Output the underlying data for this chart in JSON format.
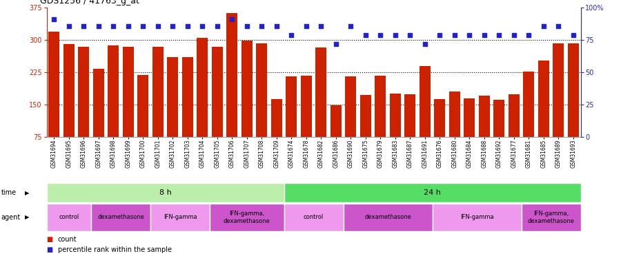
{
  "title": "GDS1256 / 41763_g_at",
  "samples": [
    "GSM31694",
    "GSM31695",
    "GSM31696",
    "GSM31697",
    "GSM31698",
    "GSM31699",
    "GSM31700",
    "GSM31701",
    "GSM31702",
    "GSM31703",
    "GSM31704",
    "GSM31705",
    "GSM31706",
    "GSM31707",
    "GSM31708",
    "GSM31709",
    "GSM31674",
    "GSM31678",
    "GSM31682",
    "GSM31686",
    "GSM31690",
    "GSM31675",
    "GSM31679",
    "GSM31683",
    "GSM31687",
    "GSM31691",
    "GSM31676",
    "GSM31680",
    "GSM31684",
    "GSM31688",
    "GSM31692",
    "GSM31677",
    "GSM31681",
    "GSM31685",
    "GSM31689",
    "GSM31693"
  ],
  "counts": [
    320,
    290,
    284,
    233,
    288,
    284,
    218,
    284,
    260,
    260,
    305,
    284,
    362,
    299,
    293,
    163,
    215,
    217,
    283,
    148,
    215,
    172,
    217,
    175,
    174,
    240,
    163,
    180,
    165,
    170,
    161,
    174,
    226,
    253,
    293,
    292
  ],
  "percentiles": [
    91,
    86,
    86,
    86,
    86,
    86,
    86,
    86,
    86,
    86,
    86,
    86,
    91,
    86,
    86,
    86,
    79,
    86,
    86,
    72,
    86,
    79,
    79,
    79,
    79,
    72,
    79,
    79,
    79,
    79,
    79,
    79,
    79,
    86,
    86,
    79
  ],
  "bar_color": "#cc2200",
  "dot_color": "#2222cc",
  "ylim_left": [
    75,
    375
  ],
  "ylim_right": [
    0,
    100
  ],
  "yticks_left": [
    75,
    150,
    225,
    300,
    375
  ],
  "yticks_right_vals": [
    0,
    25,
    50,
    75,
    100
  ],
  "yticks_right_labels": [
    "0",
    "25",
    "50",
    "75",
    "100%"
  ],
  "grid_values": [
    150,
    225,
    300
  ],
  "time_groups": [
    {
      "label": "8 h",
      "start": 0,
      "end": 15,
      "color": "#bbeeaa"
    },
    {
      "label": "24 h",
      "start": 16,
      "end": 35,
      "color": "#55dd66"
    }
  ],
  "agent_groups": [
    {
      "label": "control",
      "start": 0,
      "end": 2,
      "color": "#ee99ee"
    },
    {
      "label": "dexamethasone",
      "start": 3,
      "end": 6,
      "color": "#cc55cc"
    },
    {
      "label": "IFN-gamma",
      "start": 7,
      "end": 10,
      "color": "#ee99ee"
    },
    {
      "label": "IFN-gamma,\ndexamethasone",
      "start": 11,
      "end": 15,
      "color": "#cc55cc"
    },
    {
      "label": "control",
      "start": 16,
      "end": 19,
      "color": "#ee99ee"
    },
    {
      "label": "dexamethasone",
      "start": 20,
      "end": 25,
      "color": "#cc55cc"
    },
    {
      "label": "IFN-gamma",
      "start": 26,
      "end": 31,
      "color": "#ee99ee"
    },
    {
      "label": "IFN-gamma,\ndexamethasone",
      "start": 32,
      "end": 35,
      "color": "#cc55cc"
    }
  ],
  "background_color": "#ffffff",
  "plot_bg_color": "#ffffff"
}
